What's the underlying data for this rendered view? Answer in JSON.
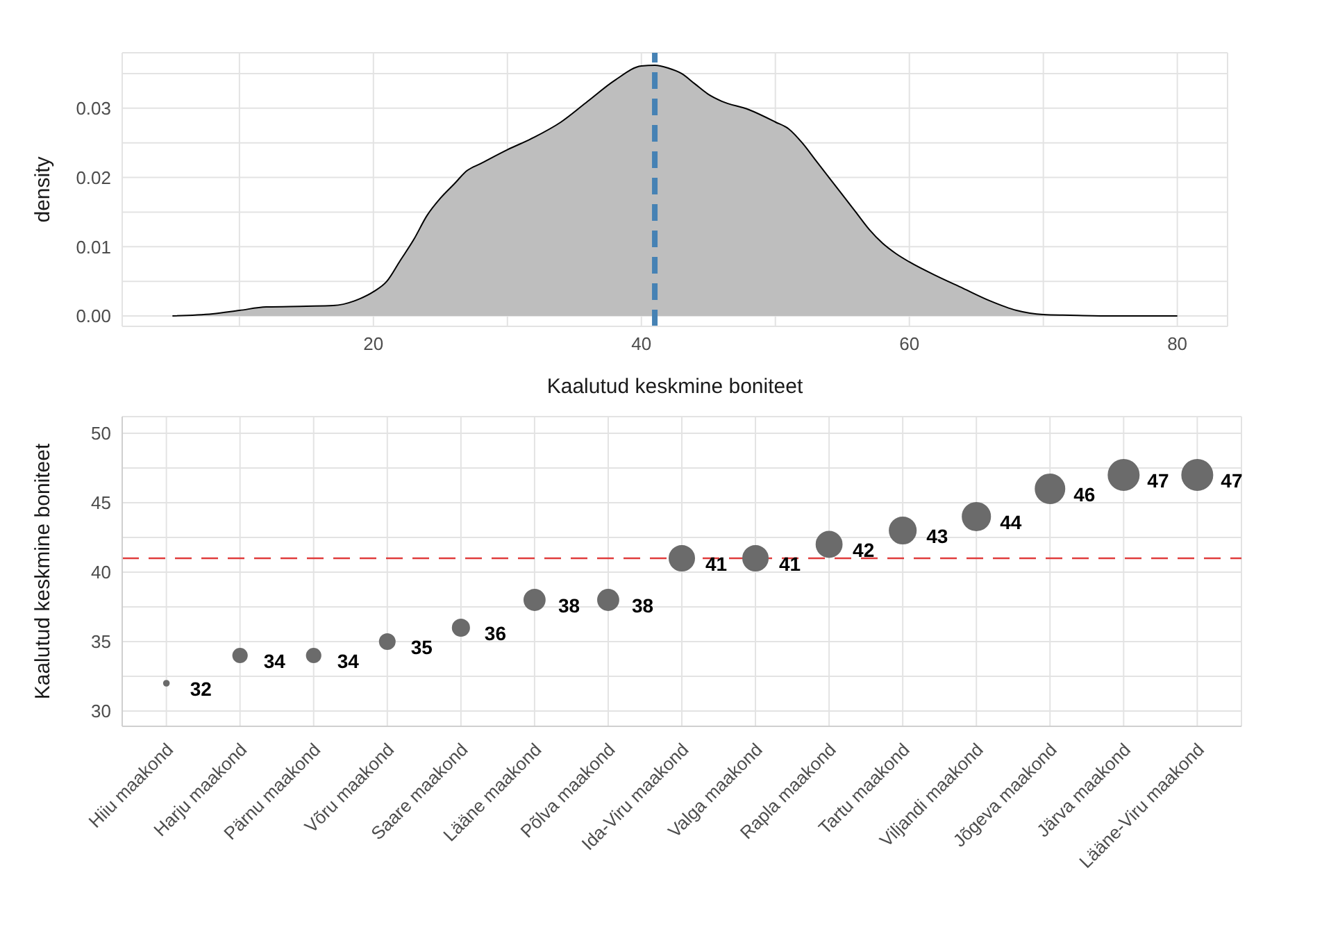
{
  "chart_data": [
    {
      "type": "area",
      "xlabel": "Kaalutud keskmine boniteet",
      "ylabel": "density",
      "color": "#bebebe",
      "x": [
        5,
        8,
        10,
        12,
        15,
        17,
        19,
        20,
        21,
        22,
        23,
        24,
        25,
        26,
        27,
        28,
        30,
        32,
        34,
        36,
        38,
        40,
        41,
        42,
        43,
        44,
        45,
        46,
        48,
        50,
        51,
        52,
        53,
        54,
        55,
        56,
        57,
        58,
        59,
        60,
        62,
        64,
        66,
        68,
        70,
        72,
        75,
        80
      ],
      "values": [
        0,
        0.0003,
        0.0008,
        0.0013,
        0.0014,
        0.0015,
        0.0025,
        0.0035,
        0.005,
        0.008,
        0.011,
        0.0145,
        0.017,
        0.019,
        0.021,
        0.022,
        0.024,
        0.0258,
        0.028,
        0.031,
        0.034,
        0.0361,
        0.0362,
        0.0358,
        0.035,
        0.0335,
        0.032,
        0.031,
        0.0298,
        0.028,
        0.027,
        0.025,
        0.0225,
        0.02,
        0.0175,
        0.015,
        0.0125,
        0.0105,
        0.009,
        0.0078,
        0.0058,
        0.004,
        0.0022,
        0.0008,
        0.0002,
        0.0001,
        0,
        0
      ],
      "xlim": [
        1.25,
        83.75
      ],
      "xticks": [
        {
          "value": 10,
          "label": null
        },
        20,
        {
          "value": 30,
          "label": null
        },
        40,
        {
          "value": 50,
          "label": null
        },
        60,
        {
          "value": 70,
          "label": null
        },
        80
      ],
      "ylim": [
        -0.0015,
        0.038
      ],
      "yticks": [
        {
          "value": 0,
          "label": "0.00"
        },
        {
          "value": 0.005,
          "label": null
        },
        0.01,
        {
          "value": 0.015,
          "label": null
        },
        0.02,
        {
          "value": 0.025,
          "label": null
        },
        0.03,
        {
          "value": 0.035,
          "label": null
        }
      ],
      "grid": true,
      "ref_lines": [
        {
          "axis": "x",
          "value": 41,
          "color": "#4682b4",
          "line_style": "dashed"
        }
      ]
    },
    {
      "type": "bubble",
      "ylabel": "Kaalutud keskmine boniteet",
      "color": "#6b6b6b",
      "categories": [
        "Hiiu maakond",
        "Harju maakond",
        "Pärnu maakond",
        "Võru maakond",
        "Saare maakond",
        "Lääne maakond",
        "Põlva maakond",
        "Ida-Viru maakond",
        "Valga maakond",
        "Rapla maakond",
        "Tartu maakond",
        "Viljandi maakond",
        "Jõgeva maakond",
        "Järva maakond",
        "Lääne-Viru maakond"
      ],
      "values": [
        32,
        34,
        34,
        35,
        36,
        38,
        38,
        41,
        41,
        42,
        43,
        44,
        46,
        47,
        47
      ],
      "sizes": [
        0.03,
        0.21,
        0.21,
        0.25,
        0.3,
        0.46,
        0.46,
        0.67,
        0.67,
        0.7,
        0.75,
        0.83,
        0.91,
        1,
        1
      ],
      "data_labels": true,
      "ylim": [
        28.9,
        51.2
      ],
      "yticks": [
        30,
        {
          "value": 32.5,
          "label": null
        },
        35,
        {
          "value": 37.5,
          "label": null
        },
        40,
        {
          "value": 42.5,
          "label": null
        },
        45,
        {
          "value": 47.5,
          "label": null
        },
        50
      ],
      "grid": true,
      "ref_lines": [
        {
          "axis": "y",
          "value": 41,
          "color": "#e03c3c",
          "line_style": "dashed"
        }
      ]
    }
  ]
}
